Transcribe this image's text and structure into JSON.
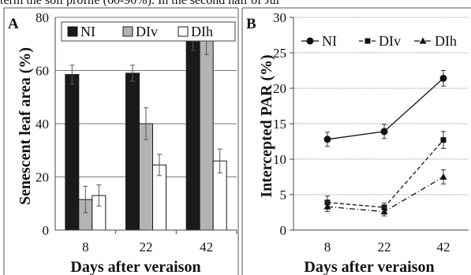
{
  "top_text": "term the soil profile (60-90%). In the second half of Jul",
  "chart_data": [
    {
      "panel_label": "A",
      "type": "bar",
      "categories": [
        "8",
        "22",
        "42"
      ],
      "series": [
        {
          "name": "NI",
          "values": [
            58.5,
            59,
            72
          ],
          "errors": [
            3.5,
            3,
            4.5
          ],
          "color": "#1a1a1a"
        },
        {
          "name": "DIv",
          "values": [
            11.5,
            40,
            71.5
          ],
          "errors": [
            5,
            6,
            5.5
          ],
          "color": "#b3b3b3"
        },
        {
          "name": "DIh",
          "values": [
            13,
            24.5,
            26
          ],
          "errors": [
            4,
            4,
            4.5
          ],
          "color": "#ffffff"
        }
      ],
      "xlabel": "Days after veraison",
      "ylabel": "Senescent leaf area (%)",
      "ylim": [
        0,
        80
      ],
      "yticks": [
        "0",
        "20",
        "40",
        "60",
        "80"
      ],
      "grid": true,
      "legend": "top"
    },
    {
      "panel_label": "B",
      "type": "line",
      "categories": [
        "8",
        "22",
        "42"
      ],
      "series": [
        {
          "name": "NI",
          "values": [
            12.8,
            13.9,
            21.4
          ],
          "errors": [
            1,
            1,
            1.1
          ],
          "style": "solid",
          "marker": "circle"
        },
        {
          "name": "DIv",
          "values": [
            3.9,
            3.2,
            12.7
          ],
          "errors": [
            0.9,
            0.6,
            1.2
          ],
          "style": "dashed",
          "marker": "square"
        },
        {
          "name": "DIh",
          "values": [
            3.3,
            2.6,
            7.5
          ],
          "errors": [
            0.7,
            0.6,
            1.0
          ],
          "style": "dashdot",
          "marker": "triangle"
        }
      ],
      "xlabel": "Days after veraison",
      "ylabel": "Intercepted PAR (%)",
      "ylim": [
        0,
        30
      ],
      "yticks": [
        "0",
        "5",
        "10",
        "15",
        "20",
        "25",
        "30"
      ],
      "grid": true,
      "legend": "top"
    }
  ]
}
